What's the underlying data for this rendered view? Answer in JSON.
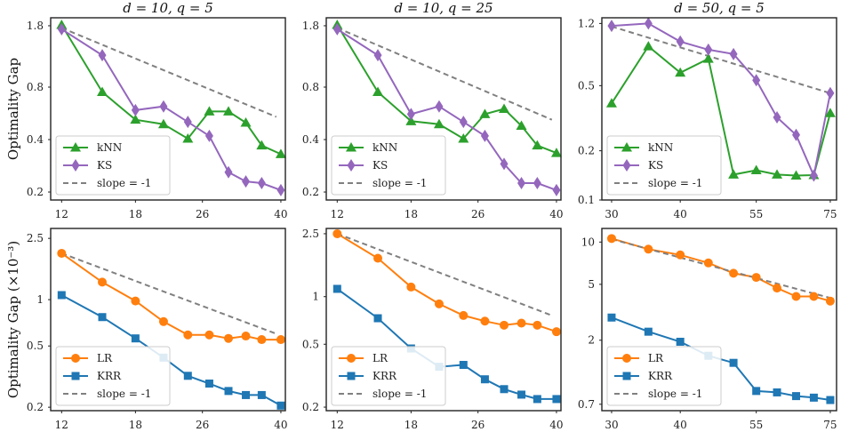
{
  "ylabels": [
    "Optimality Gap",
    "Optimality Gap (×10⁻³)"
  ],
  "chart_data": [
    {
      "type": "line",
      "title": "d = 10,  q = 5",
      "ylabel": "Optimality Gap",
      "xscale": "log",
      "yscale": "log",
      "xlim": [
        11.3,
        41
      ],
      "ylim": [
        0.18,
        2.0
      ],
      "xticks": [
        12,
        18,
        26,
        40
      ],
      "yticks": [
        0.2,
        0.4,
        0.8,
        1.8
      ],
      "legend": "lower-left",
      "series": [
        {
          "name": "kNN",
          "color": "#2ca02c",
          "marker": "triangle",
          "x": [
            12,
            15,
            18,
            21,
            24,
            27,
            30,
            33,
            36,
            40
          ],
          "y": [
            1.82,
            0.75,
            0.52,
            0.49,
            0.405,
            0.58,
            0.58,
            0.5,
            0.37,
            0.33
          ]
        },
        {
          "name": "KS",
          "color": "#9467bd",
          "marker": "diamond",
          "x": [
            12,
            15,
            18,
            21,
            24,
            27,
            30,
            33,
            36,
            40
          ],
          "y": [
            1.72,
            1.22,
            0.59,
            0.62,
            0.505,
            0.42,
            0.26,
            0.23,
            0.225,
            0.205
          ]
        },
        {
          "name": "slope = -1",
          "color": "#808080",
          "dashed": true,
          "x": [
            12,
            39
          ],
          "y": [
            1.75,
            0.54
          ]
        }
      ]
    },
    {
      "type": "line",
      "title": "d = 10,  q = 25",
      "ylabel": "",
      "xscale": "log",
      "yscale": "log",
      "xlim": [
        11.3,
        41
      ],
      "ylim": [
        0.18,
        2.0
      ],
      "xticks": [
        12,
        18,
        26,
        40
      ],
      "yticks": [
        0.2,
        0.4,
        0.8,
        1.8
      ],
      "legend": "lower-left",
      "series": [
        {
          "name": "kNN",
          "color": "#2ca02c",
          "marker": "triangle",
          "x": [
            12,
            15,
            18,
            21,
            24,
            27,
            30,
            33,
            36,
            40
          ],
          "y": [
            1.82,
            0.75,
            0.51,
            0.49,
            0.405,
            0.56,
            0.6,
            0.48,
            0.37,
            0.335
          ]
        },
        {
          "name": "KS",
          "color": "#9467bd",
          "marker": "diamond",
          "x": [
            12,
            15,
            18,
            21,
            24,
            27,
            30,
            33,
            36,
            40
          ],
          "y": [
            1.72,
            1.22,
            0.56,
            0.62,
            0.505,
            0.42,
            0.29,
            0.225,
            0.225,
            0.205
          ]
        },
        {
          "name": "slope = -1",
          "color": "#808080",
          "dashed": true,
          "x": [
            12,
            39
          ],
          "y": [
            1.75,
            0.52
          ]
        }
      ]
    },
    {
      "type": "line",
      "title": "d = 50,  q = 5",
      "ylabel": "",
      "xscale": "log",
      "yscale": "log",
      "xlim": [
        28.8,
        77
      ],
      "ylim": [
        0.1,
        1.3
      ],
      "xticks": [
        30,
        40,
        55,
        75
      ],
      "yticks": [
        0.1,
        0.2,
        0.5,
        1.2
      ],
      "legend": "lower-left",
      "series": [
        {
          "name": "kNN",
          "color": "#2ca02c",
          "marker": "triangle",
          "x": [
            30,
            35,
            40,
            45,
            50,
            55,
            60,
            65,
            70,
            75
          ],
          "y": [
            0.39,
            0.87,
            0.6,
            0.73,
            0.143,
            0.152,
            0.143,
            0.141,
            0.142,
            0.34
          ]
        },
        {
          "name": "KS",
          "color": "#9467bd",
          "marker": "diamond",
          "x": [
            30,
            35,
            40,
            45,
            50,
            55,
            60,
            65,
            70,
            75
          ],
          "y": [
            1.16,
            1.2,
            0.93,
            0.83,
            0.78,
            0.54,
            0.32,
            0.25,
            0.141,
            0.45
          ]
        },
        {
          "name": "slope = -1",
          "color": "#808080",
          "dashed": true,
          "x": [
            30,
            75
          ],
          "y": [
            1.15,
            0.45
          ]
        }
      ]
    },
    {
      "type": "line",
      "title": "",
      "ylabel": "Optimality Gap (×10⁻³)",
      "xscale": "log",
      "yscale": "log",
      "xlim": [
        11.3,
        41
      ],
      "ylim": [
        0.19,
        2.9
      ],
      "xticks": [
        12,
        18,
        26,
        40
      ],
      "yticks": [
        0.2,
        0.5,
        1.0,
        2.5
      ],
      "legend": "lower-left",
      "series": [
        {
          "name": "LR",
          "color": "#ff7f0e",
          "marker": "circle",
          "x": [
            12,
            15,
            18,
            21,
            24,
            27,
            30,
            33,
            36,
            40
          ],
          "y": [
            2.0,
            1.3,
            0.98,
            0.72,
            0.59,
            0.59,
            0.56,
            0.58,
            0.55,
            0.55
          ]
        },
        {
          "name": "KRR",
          "color": "#1f77b4",
          "marker": "square",
          "x": [
            12,
            15,
            18,
            21,
            24,
            27,
            30,
            33,
            36,
            40
          ],
          "y": [
            1.07,
            0.77,
            0.56,
            0.42,
            0.32,
            0.285,
            0.255,
            0.24,
            0.24,
            0.205
          ]
        },
        {
          "name": "slope = -1",
          "color": "#808080",
          "dashed": true,
          "x": [
            12,
            39
          ],
          "y": [
            2.0,
            0.6
          ]
        }
      ]
    },
    {
      "type": "line",
      "title": "",
      "ylabel": "",
      "xscale": "log",
      "yscale": "log",
      "xlim": [
        11.3,
        41
      ],
      "ylim": [
        0.19,
        2.7
      ],
      "xticks": [
        12,
        18,
        26,
        40
      ],
      "yticks": [
        0.2,
        0.5,
        1.0,
        2.5
      ],
      "legend": "lower-left",
      "series": [
        {
          "name": "LR",
          "color": "#ff7f0e",
          "marker": "circle",
          "x": [
            12,
            15,
            18,
            21,
            24,
            27,
            30,
            33,
            36,
            40
          ],
          "y": [
            2.5,
            1.75,
            1.15,
            0.9,
            0.76,
            0.7,
            0.66,
            0.68,
            0.66,
            0.6
          ]
        },
        {
          "name": "KRR",
          "color": "#1f77b4",
          "marker": "square",
          "x": [
            12,
            15,
            18,
            21,
            24,
            27,
            30,
            33,
            36,
            40
          ],
          "y": [
            1.12,
            0.73,
            0.47,
            0.36,
            0.37,
            0.3,
            0.26,
            0.24,
            0.225,
            0.225
          ]
        },
        {
          "name": "slope = -1",
          "color": "#808080",
          "dashed": true,
          "x": [
            12,
            39
          ],
          "y": [
            2.5,
            0.76
          ]
        }
      ]
    },
    {
      "type": "line",
      "title": "",
      "ylabel": "",
      "xscale": "log",
      "yscale": "log",
      "xlim": [
        28.8,
        77
      ],
      "ylim": [
        0.63,
        12.5
      ],
      "xticks": [
        30,
        40,
        55,
        75
      ],
      "yticks": [
        0.7,
        2,
        5,
        10
      ],
      "legend": "lower-left",
      "series": [
        {
          "name": "LR",
          "color": "#ff7f0e",
          "marker": "circle",
          "x": [
            30,
            35,
            40,
            45,
            50,
            55,
            60,
            65,
            70,
            75
          ],
          "y": [
            10.6,
            8.9,
            8.1,
            7.1,
            6.0,
            5.6,
            4.7,
            4.1,
            4.1,
            3.8
          ]
        },
        {
          "name": "KRR",
          "color": "#1f77b4",
          "marker": "square",
          "x": [
            30,
            35,
            40,
            45,
            50,
            55,
            60,
            65,
            70,
            75
          ],
          "y": [
            2.9,
            2.3,
            1.95,
            1.55,
            1.38,
            0.87,
            0.85,
            0.8,
            0.78,
            0.75
          ]
        },
        {
          "name": "slope = -1",
          "color": "#808080",
          "dashed": true,
          "x": [
            30,
            75
          ],
          "y": [
            10.5,
            4.0
          ]
        }
      ]
    }
  ]
}
